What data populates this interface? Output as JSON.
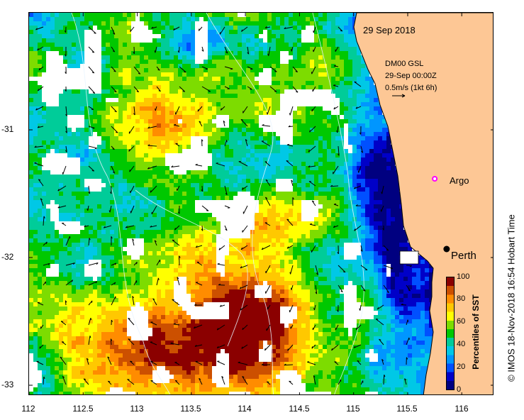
{
  "title": "29 Sep 2018",
  "model": {
    "name": "DM00 GSL",
    "time": "29-Sep 00:00Z",
    "scale": "0.5m/s (1kt 6h)"
  },
  "places": [
    {
      "name": "Argo",
      "lon": 115.75,
      "lat": -31.4
    },
    {
      "name": "Perth",
      "lon": 115.86,
      "lat": -31.95
    }
  ],
  "x_axis": {
    "ticks": [
      "112",
      "112.5",
      "113",
      "113.5",
      "114",
      "114.5",
      "115",
      "115.5",
      "116"
    ]
  },
  "y_axis": {
    "ticks": [
      "-31",
      "-32",
      "-33"
    ]
  },
  "extent": {
    "lon": [
      112,
      116.3
    ],
    "lat": [
      -33.1,
      -30.1
    ]
  },
  "colorbar": {
    "label": "Percentiles of SST",
    "ticks": [
      "0",
      "20",
      "40",
      "60",
      "80",
      "100"
    ],
    "colors": [
      "#000080",
      "#0000c8",
      "#0050ff",
      "#0096ff",
      "#00c8e6",
      "#00cc99",
      "#00c800",
      "#7ddc00",
      "#ffff00",
      "#ffc800",
      "#ff8c00",
      "#cc5000",
      "#8b0000"
    ]
  },
  "land_color": "#fdc795",
  "credit": "© IMOS 18-Nov-2018 16:54 Hobart Time"
}
